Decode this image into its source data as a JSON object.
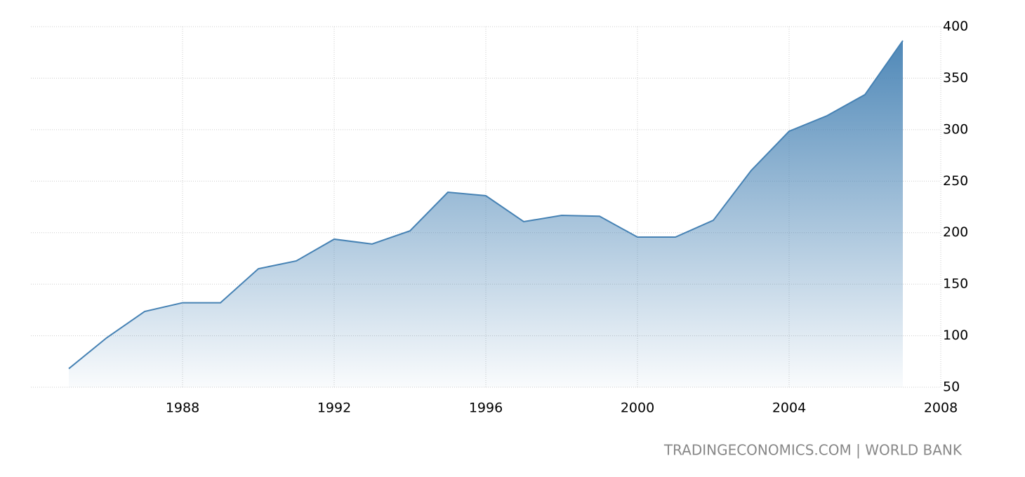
{
  "chart_data": {
    "type": "area",
    "x": [
      1985,
      1986,
      1987,
      1988,
      1989,
      1990,
      1991,
      1992,
      1993,
      1994,
      1995,
      1996,
      1997,
      1998,
      1999,
      2000,
      2001,
      2002,
      2003,
      2004,
      2005,
      2006,
      2007
    ],
    "values": [
      68,
      98,
      123.5,
      132,
      132,
      165,
      172.6,
      193.7,
      189,
      201.8,
      239.3,
      235.9,
      210.7,
      216.8,
      216,
      195.7,
      195.7,
      212,
      260.4,
      298.5,
      313.5,
      334,
      386.4
    ],
    "color": "#4682b4",
    "xlim": [
      1984,
      2008
    ],
    "xticks": [
      1988,
      1992,
      1996,
      2000,
      2004,
      2008
    ],
    "ylim": [
      50,
      400
    ],
    "yticks": [
      50,
      100,
      150,
      200,
      250,
      300,
      350,
      400
    ],
    "grid": true,
    "source": "TRADINGECONOMICS.COM | WORLD BANK"
  }
}
